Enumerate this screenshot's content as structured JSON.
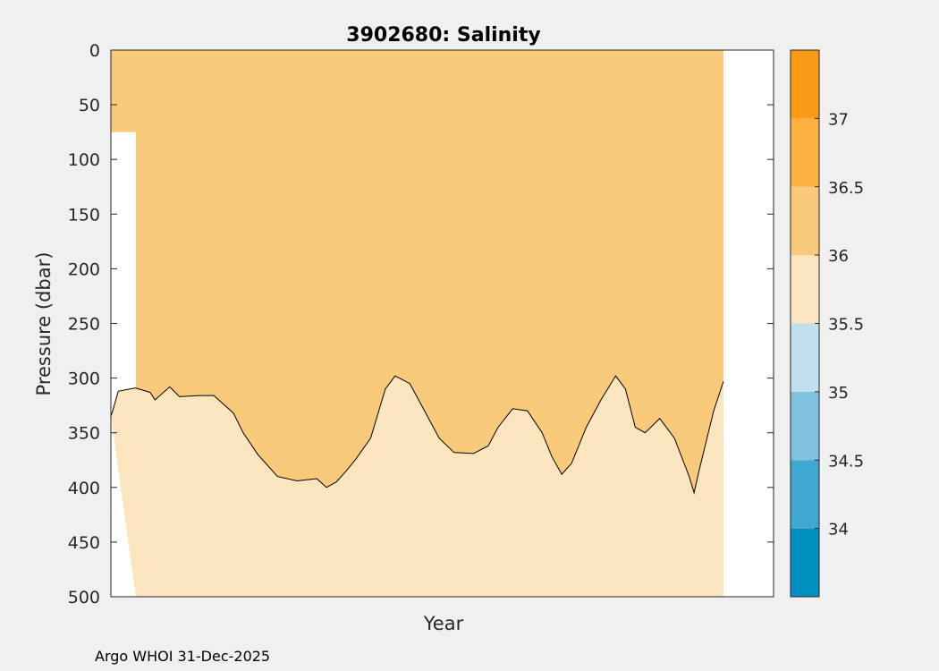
{
  "chart_data": {
    "type": "filled-contour",
    "title": "3902680:  Salinity",
    "xlabel": "Year",
    "ylabel": "Pressure (dbar)",
    "ylim": [
      0,
      500
    ],
    "y_reversed": true,
    "yticks": [
      0,
      50,
      100,
      150,
      200,
      250,
      300,
      350,
      400,
      450,
      500
    ],
    "xticks": [],
    "profiles_x_range": [
      0.0,
      1.0
    ],
    "contour_levels": [
      33.5,
      34,
      34.5,
      35,
      35.5,
      36,
      36.5,
      37,
      37.5
    ],
    "colorbar": {
      "ticks": [
        34,
        34.5,
        35,
        35.5,
        36,
        36.5,
        37
      ],
      "range": [
        33.5,
        37.5
      ],
      "bins": [
        {
          "min": 33.5,
          "max": 34.0,
          "color": "#008fbf"
        },
        {
          "min": 34.0,
          "max": 34.5,
          "color": "#40a8d0"
        },
        {
          "min": 34.5,
          "max": 35.0,
          "color": "#80c2de"
        },
        {
          "min": 35.0,
          "max": 35.5,
          "color": "#bfe0ec"
        },
        {
          "min": 35.5,
          "max": 36.0,
          "color": "#fbe5bf"
        },
        {
          "min": 36.0,
          "max": 36.5,
          "color": "#f8ca7a"
        },
        {
          "min": 36.5,
          "max": 37.0,
          "color": "#fab140"
        },
        {
          "min": 37.0,
          "max": 37.5,
          "color": "#fb9a14"
        }
      ]
    },
    "regions": [
      {
        "level": "36.0-36.5",
        "boundary": [
          [
            0.0,
            0
          ],
          [
            1.0,
            0
          ],
          [
            1.0,
            500
          ],
          [
            0.0,
            500
          ]
        ],
        "note": "background band covering the profile range (shallow surface edge clipped near x=0)"
      },
      {
        "level": "35.5-36.0",
        "description": "deep band below the 36 isohaline",
        "upper_contour_36": [
          [
            0.0,
            335
          ],
          [
            0.005,
            328
          ],
          [
            0.015,
            312
          ],
          [
            0.05,
            309
          ],
          [
            0.08,
            313
          ],
          [
            0.09,
            320
          ],
          [
            0.12,
            308
          ],
          [
            0.14,
            317
          ],
          [
            0.18,
            316
          ],
          [
            0.21,
            316
          ],
          [
            0.25,
            332
          ],
          [
            0.27,
            350
          ],
          [
            0.3,
            370
          ],
          [
            0.34,
            390
          ],
          [
            0.38,
            394
          ],
          [
            0.42,
            392
          ],
          [
            0.44,
            400
          ],
          [
            0.46,
            395
          ],
          [
            0.48,
            385
          ],
          [
            0.5,
            374
          ],
          [
            0.53,
            355
          ],
          [
            0.55,
            325
          ],
          [
            0.56,
            310
          ],
          [
            0.58,
            298
          ],
          [
            0.61,
            305
          ],
          [
            0.64,
            330
          ],
          [
            0.67,
            355
          ],
          [
            0.7,
            368
          ],
          [
            0.74,
            369
          ],
          [
            0.77,
            362
          ],
          [
            0.79,
            345
          ],
          [
            0.82,
            328
          ],
          [
            0.85,
            330
          ],
          [
            0.88,
            350
          ],
          [
            0.9,
            372
          ],
          [
            0.92,
            388
          ],
          [
            0.94,
            378
          ],
          [
            0.97,
            345
          ],
          [
            1.0,
            320
          ],
          [
            1.03,
            298
          ],
          [
            1.05,
            310
          ],
          [
            1.07,
            345
          ],
          [
            1.09,
            350
          ],
          [
            1.12,
            337
          ],
          [
            1.15,
            355
          ],
          [
            1.18,
            390
          ],
          [
            1.19,
            405
          ],
          [
            1.2,
            385
          ],
          [
            1.23,
            330
          ],
          [
            1.25,
            303
          ]
        ]
      }
    ],
    "source_note": "Argo WHOI 31-Dec-2025"
  }
}
